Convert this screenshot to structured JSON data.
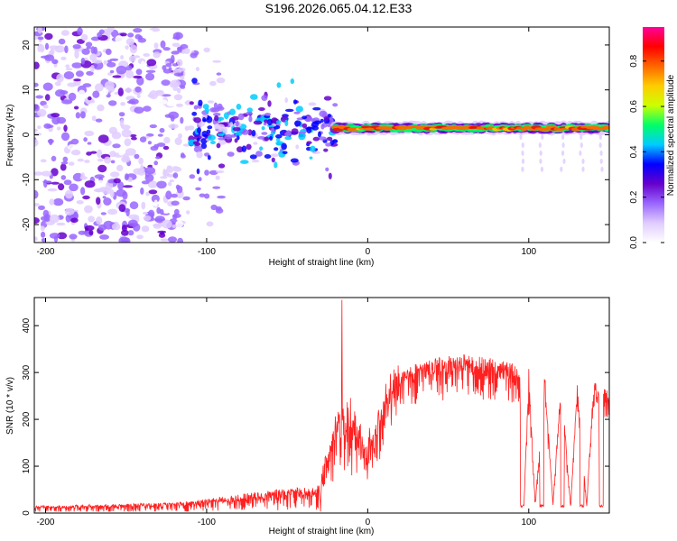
{
  "title": "S196.2026.065.04.12.E33",
  "chart_data": [
    {
      "type": "heatmap",
      "name": "spectrogram",
      "xlabel": "Height of straight line (km)",
      "ylabel": "Frequency (Hz)",
      "xlim": [
        -207,
        150
      ],
      "ylim": [
        -24,
        24
      ],
      "xticks": [
        -200,
        -100,
        0,
        100
      ],
      "yticks": [
        -20,
        -10,
        0,
        10,
        20
      ],
      "colorbar": {
        "label": "Normalized spectral amplitude",
        "range": [
          0,
          0.95
        ],
        "ticks": [
          "0.0",
          "0.2",
          "0.4",
          "0.6",
          "0.8"
        ],
        "tick_values": [
          0.0,
          0.2,
          0.4,
          0.6,
          0.8
        ],
        "colors": [
          "#ffffff",
          "#e0ccff",
          "#9966ff",
          "#6600cc",
          "#0000ff",
          "#00ccff",
          "#00ff66",
          "#ccff00",
          "#ffcc00",
          "#ff6600",
          "#ff0000",
          "#ff0099"
        ]
      },
      "features": [
        {
          "label": "noise region",
          "x_range": [
            -207,
            -115
          ],
          "freq_range": [
            -24,
            24
          ],
          "amplitude": 0.1
        },
        {
          "label": "onset cluster",
          "x_range": [
            -110,
            -20
          ],
          "freq_range": [
            -10,
            10
          ],
          "amplitude": 0.25
        },
        {
          "label": "tone",
          "x_range": [
            -20,
            150
          ],
          "freq": 1.5,
          "amplitude": 0.9
        }
      ]
    },
    {
      "type": "line",
      "name": "snr",
      "xlabel": "Height of straight line (km)",
      "ylabel": "SNR (10 * v/v)",
      "xlim": [
        -207,
        150
      ],
      "ylim": [
        0,
        460
      ],
      "xticks": [
        -200,
        -100,
        0,
        100
      ],
      "yticks": [
        0,
        100,
        200,
        300,
        400
      ],
      "color": "#ff0000",
      "series": [
        {
          "name": "SNR",
          "x": [
            -207,
            -180,
            -150,
            -120,
            -100,
            -80,
            -60,
            -40,
            -30,
            -25,
            -20,
            -15,
            -10,
            -5,
            0,
            5,
            10,
            20,
            30,
            40,
            50,
            60,
            70,
            80,
            90,
            95,
            97,
            100,
            104,
            110,
            115,
            120,
            126,
            130,
            136,
            140,
            145,
            150
          ],
          "y": [
            15,
            18,
            20,
            22,
            30,
            40,
            50,
            55,
            60,
            120,
            200,
            230,
            220,
            180,
            150,
            200,
            260,
            300,
            320,
            330,
            335,
            340,
            335,
            330,
            320,
            300,
            15,
            310,
            20,
            300,
            20,
            290,
            15,
            280,
            15,
            280,
            270,
            260
          ]
        },
        {
          "name": "spike",
          "x": [
            -16
          ],
          "y": [
            455
          ]
        },
        {
          "name": "dropouts",
          "x": [
            96,
            108,
            121,
            133,
            145
          ],
          "y": [
            12,
            14,
            10,
            12,
            14
          ]
        }
      ]
    }
  ]
}
